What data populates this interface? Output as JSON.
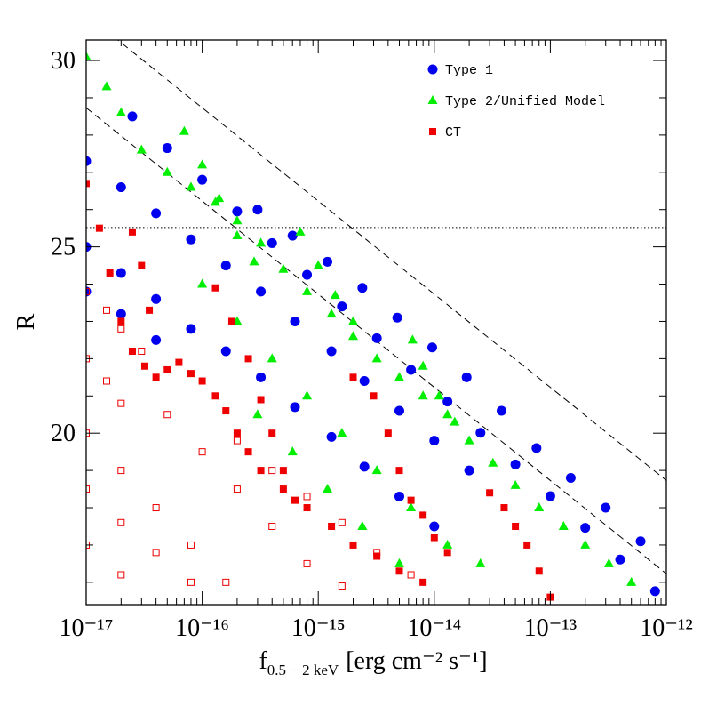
{
  "chart_data": {
    "type": "scatter",
    "xscale": "log",
    "xlim": [
      1e-17,
      1e-12
    ],
    "ylim": [
      15.4,
      30.55
    ],
    "xticks": [
      {
        "value": 1e-17,
        "label": "10⁻¹⁷"
      },
      {
        "value": 1e-16,
        "label": "10⁻¹⁶"
      },
      {
        "value": 1e-15,
        "label": "10⁻¹⁵"
      },
      {
        "value": 1e-14,
        "label": "10⁻¹⁴"
      },
      {
        "value": 1e-13,
        "label": "10⁻¹³"
      },
      {
        "value": 1e-12,
        "label": "10⁻¹²"
      }
    ],
    "xminorticks": [
      2e-17,
      3e-17,
      4e-17,
      5e-17,
      6e-17,
      7e-17,
      8e-17,
      9e-17,
      2e-16,
      3e-16,
      4e-16,
      5e-16,
      6e-16,
      7e-16,
      8e-16,
      9e-16,
      2e-15,
      3e-15,
      4e-15,
      5e-15,
      6e-15,
      7e-15,
      8e-15,
      9e-15,
      2e-14,
      3e-14,
      4e-14,
      5e-14,
      6e-14,
      7e-14,
      8e-14,
      9e-14,
      2e-13,
      3e-13,
      4e-13,
      5e-13,
      6e-13,
      7e-13,
      8e-13,
      9e-13
    ],
    "yticks": [
      20,
      25,
      30
    ],
    "yminorticks": [
      16,
      17,
      18,
      19,
      21,
      22,
      23,
      24,
      26,
      27,
      28,
      29
    ],
    "ylabel": "R",
    "xlabel": {
      "symbol": "f",
      "subscript": "0.5 − 2 keV",
      "units": "[erg cm⁻² s⁻¹]"
    },
    "legend": "upper right",
    "lines": [
      {
        "style": "dashed",
        "x": [
          1e-17,
          1e-12
        ],
        "y": [
          31.23,
          18.73
        ]
      },
      {
        "style": "dashed",
        "x": [
          1e-17,
          1e-12
        ],
        "y": [
          28.73,
          16.23
        ]
      },
      {
        "style": "dotted",
        "x": [
          1e-17,
          1e-12
        ],
        "y": [
          25.52,
          25.52
        ]
      }
    ],
    "series": [
      {
        "name": "Type 1",
        "color": "#0000ee",
        "marker": "circle",
        "x": [
          2.5e-17,
          5e-17,
          1e-16,
          2e-16,
          4e-16,
          8e-16,
          1.6e-15,
          3.2e-15,
          6.3e-15,
          1.3e-14,
          2.5e-14,
          5e-14,
          1e-13,
          2e-13,
          4e-13,
          8e-13,
          1e-17,
          2e-17,
          4e-17,
          8e-17,
          1.6e-16,
          3.2e-16,
          6.3e-16,
          1.3e-15,
          2.5e-15,
          5e-15,
          1e-14,
          2e-14,
          1e-17,
          2e-17,
          4e-17,
          8e-17,
          1.6e-16,
          3.2e-16,
          6.3e-16,
          1.3e-15,
          2.5e-15,
          5e-15,
          1e-14,
          1e-17,
          2e-17,
          4e-17,
          3e-16,
          6e-16,
          1.2e-15,
          2.4e-15,
          4.8e-15,
          9.6e-15,
          1.9e-14,
          3.8e-14,
          7.6e-14,
          1.5e-13,
          3e-13,
          6e-13
        ],
        "values": [
          28.5,
          27.65,
          26.8,
          25.95,
          25.1,
          24.25,
          23.4,
          22.55,
          21.7,
          20.85,
          20.01,
          19.16,
          18.31,
          17.46,
          16.61,
          15.76,
          27.3,
          26.6,
          25.9,
          25.2,
          24.5,
          23.8,
          23.0,
          22.2,
          21.4,
          20.6,
          19.8,
          19.0,
          25.0,
          24.3,
          23.6,
          22.8,
          22.2,
          21.5,
          20.7,
          19.9,
          19.1,
          18.3,
          17.5,
          23.8,
          23.2,
          22.5,
          26.0,
          25.3,
          24.6,
          23.9,
          23.1,
          22.3,
          21.5,
          20.6,
          19.6,
          18.8,
          18.0,
          17.1
        ]
      },
      {
        "name": "Type 2/Unified Model",
        "color": "#00ee00",
        "marker": "triangle",
        "x": [
          1e-17,
          1.5e-17,
          2e-17,
          3e-17,
          5e-17,
          8e-17,
          1.3e-16,
          2e-16,
          3.2e-16,
          5e-16,
          8e-16,
          1.3e-15,
          2e-15,
          3.2e-15,
          5e-15,
          8e-15,
          1.3e-14,
          2e-14,
          3.2e-14,
          5e-14,
          8e-14,
          1.3e-13,
          2e-13,
          3.2e-13,
          5e-13,
          7e-17,
          1e-16,
          1.4e-16,
          2e-16,
          2.8e-16,
          7e-16,
          1e-15,
          1.4e-15,
          2e-15,
          6.5e-15,
          8e-15,
          1.1e-14,
          1.5e-14,
          1e-16,
          2e-16,
          4e-16,
          8e-16,
          1.6e-15,
          3.2e-15,
          6.3e-15,
          1.3e-14,
          2.5e-14,
          3e-16,
          6e-16,
          1.2e-15,
          2.4e-15,
          5e-15
        ],
        "values": [
          30.1,
          29.3,
          28.6,
          27.6,
          27.0,
          26.6,
          26.2,
          25.7,
          25.1,
          24.4,
          23.8,
          23.2,
          22.6,
          22.0,
          21.5,
          21.0,
          20.5,
          19.8,
          19.2,
          18.6,
          18.0,
          17.5,
          17.0,
          16.5,
          16.0,
          28.1,
          27.2,
          26.3,
          25.3,
          24.6,
          25.4,
          24.5,
          23.7,
          23.0,
          22.5,
          21.8,
          21.0,
          20.3,
          24.0,
          23.0,
          22.0,
          21.0,
          20.0,
          19.0,
          18.0,
          17.0,
          16.5,
          20.5,
          19.5,
          18.5,
          17.5,
          16.5
        ]
      },
      {
        "name": "CT",
        "color": "#ee0000",
        "marker": "square",
        "x": [
          1e-17,
          1.3e-17,
          1.6e-17,
          2e-17,
          2.5e-17,
          3.2e-17,
          4e-17,
          5e-17,
          6.3e-17,
          8e-17,
          1e-16,
          1.3e-16,
          1.6e-16,
          2e-16,
          2.5e-16,
          3.2e-16,
          5e-16,
          8e-16,
          1.3e-15,
          2e-15,
          3.2e-15,
          5e-15,
          8e-15,
          2.5e-17,
          3e-17,
          3.5e-17,
          1.3e-16,
          1.8e-16,
          2.5e-16,
          3.2e-16,
          4e-16,
          5e-16,
          6.3e-16,
          2e-15,
          3e-15,
          4e-15,
          5e-15,
          6.3e-15,
          8e-15,
          1e-14,
          1.3e-14,
          3e-14,
          4e-14,
          5e-14,
          6.3e-14,
          8e-14,
          1e-13
        ],
        "values": [
          26.7,
          25.5,
          24.3,
          23.0,
          22.2,
          21.8,
          21.5,
          21.7,
          21.9,
          21.6,
          21.4,
          21.0,
          20.6,
          20.0,
          19.5,
          19.0,
          18.5,
          18.0,
          17.5,
          17.0,
          16.7,
          16.3,
          16.0,
          25.4,
          24.5,
          23.3,
          23.9,
          23.0,
          22.0,
          20.9,
          20.0,
          19.0,
          18.2,
          21.5,
          21.0,
          20.0,
          19.0,
          18.2,
          17.8,
          17.2,
          16.8,
          18.4,
          18.0,
          17.5,
          17.0,
          16.3,
          15.6
        ]
      },
      {
        "color": "#ee0000",
        "marker": "open-square",
        "x": [
          1e-17,
          1.5e-17,
          2e-17,
          3e-17,
          1e-17,
          1.5e-17,
          2e-17,
          1e-17,
          2e-17,
          4e-17,
          8e-17,
          1.6e-16,
          1e-17,
          2e-17,
          4e-17,
          8e-17,
          1e-17,
          2e-17,
          5e-17,
          1e-16,
          2e-16,
          4e-16,
          8e-16,
          1.6e-15,
          2e-16,
          4e-16,
          8e-16,
          1.6e-15,
          3.2e-15,
          6.3e-15
        ],
        "values": [
          23.8,
          23.3,
          22.8,
          22.2,
          22.0,
          21.4,
          20.8,
          20.0,
          19.0,
          18.0,
          17.0,
          16.0,
          18.5,
          17.6,
          16.8,
          16.0,
          17.0,
          16.2,
          20.5,
          19.5,
          18.5,
          17.5,
          16.5,
          15.9,
          19.8,
          19.0,
          18.3,
          17.6,
          16.8,
          16.2
        ]
      }
    ]
  }
}
